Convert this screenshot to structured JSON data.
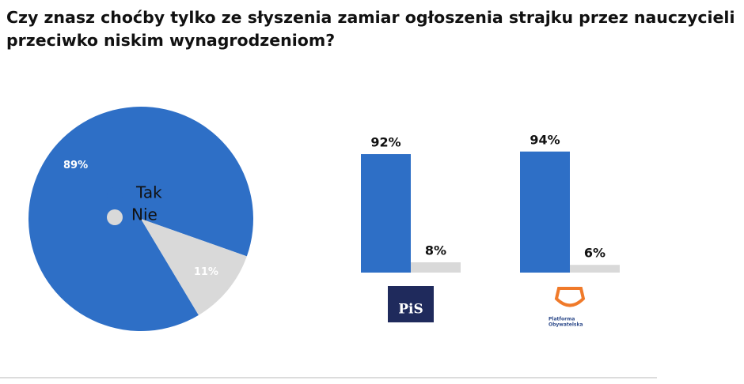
{
  "title": "Czy znasz choćby tylko ze słyszenia zamiar ogłoszenia strajku przez nauczycieli przeciwko niskim wynagrodzeniom?",
  "chart_data": [
    {
      "type": "pie",
      "categories": [
        "Tak",
        "Nie"
      ],
      "values": [
        89,
        11
      ],
      "value_labels": [
        "89%",
        "11%"
      ],
      "colors": [
        "#2e6fc6",
        "#d9d9d9"
      ],
      "legend": "center"
    },
    {
      "type": "bar",
      "party": [
        "PiS"
      ],
      "values": [
        92,
        8
      ],
      "value_labels": [
        "92%",
        "8%"
      ],
      "colors": [
        "#2e6fc6",
        "#d9d9d9"
      ]
    },
    {
      "type": "bar",
      "party": [
        "Platforma",
        "Obywatelska"
      ],
      "values": [
        94,
        6
      ],
      "value_labels": [
        "94%",
        "6%"
      ],
      "colors": [
        "#2e6fc6",
        "#d9d9d9"
      ]
    }
  ]
}
